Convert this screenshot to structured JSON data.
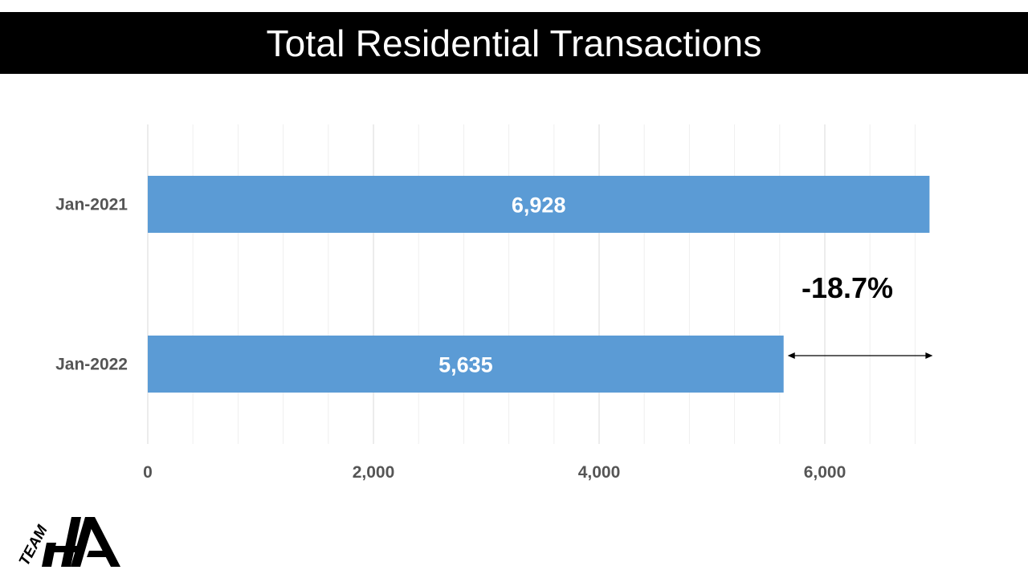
{
  "title": "Total Residential Transactions",
  "chart_data": {
    "type": "bar",
    "orientation": "horizontal",
    "categories": [
      "Jan-2021",
      "Jan-2022"
    ],
    "values": [
      6928,
      5635
    ],
    "value_labels": [
      "6,928",
      "5,635"
    ],
    "xlim": [
      0,
      7000
    ],
    "x_ticks": [
      0,
      2000,
      4000,
      6000
    ],
    "x_tick_labels": [
      "0",
      "2,000",
      "4,000",
      "6,000"
    ],
    "minor_step": 400,
    "grid": true,
    "legend": "none",
    "bar_color": "#5b9bd5",
    "annotation": {
      "text": "-18.7%",
      "from_value": 5635,
      "to_value": 6928
    }
  },
  "logo": {
    "text": "TEAM",
    "letters": "HA"
  }
}
